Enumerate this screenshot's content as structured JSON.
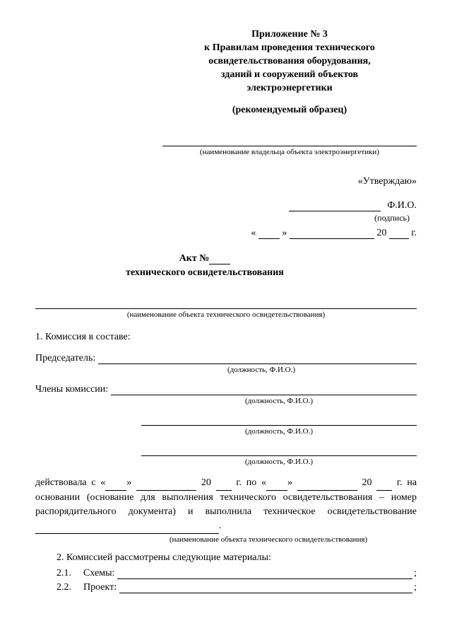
{
  "header": {
    "l1": "Приложение № 3",
    "l2": "к Правилам проведения технического",
    "l3": "освидетельствования оборудования,",
    "l4": "зданий и сооружений объектов",
    "l5": "электроэнергетики",
    "sample": "(рекомендуемый образец)",
    "owner_caption": "(наименование владельца объекта электроэнергетики)"
  },
  "approval": {
    "approve": "«Утверждаю»",
    "fio": "Ф.И.О.",
    "sign_caption": "(подпись)",
    "date_open": "« ",
    "date_close": " »",
    "year_prefix": "20",
    "year_suffix": "г."
  },
  "act": {
    "title_prefix": "Акт №",
    "subtitle": "технического освидетельствования",
    "object_caption": "(наименование объекта технического освидетельствования)"
  },
  "s1": {
    "title": "1.  Комиссия в составе:",
    "chair": "Председатель:",
    "members": "Члены комиссии:",
    "pos_caption": "(должность, Ф.И.О.)"
  },
  "body": {
    "text1": "действовала с «",
    "text2": "» ",
    "text3": " 20 ",
    "text4": " г. по «",
    "text5": "» ",
    "text6": " 20 ",
    "text7": " г. на основании (основание для выполнения технического освидетельствования – номер распорядительного документа) и выполнила техническое освидетельствование",
    "period": ".",
    "obj_caption": "(наименование объекта технического освидетельствования)"
  },
  "s2": {
    "title": "2.      Комиссией рассмотрены следующие материалы:",
    "i1_num": "2.1.",
    "i1_label": "Схемы:",
    "i2_num": "2.2.",
    "i2_label": "Проект:",
    "semi": ";"
  }
}
